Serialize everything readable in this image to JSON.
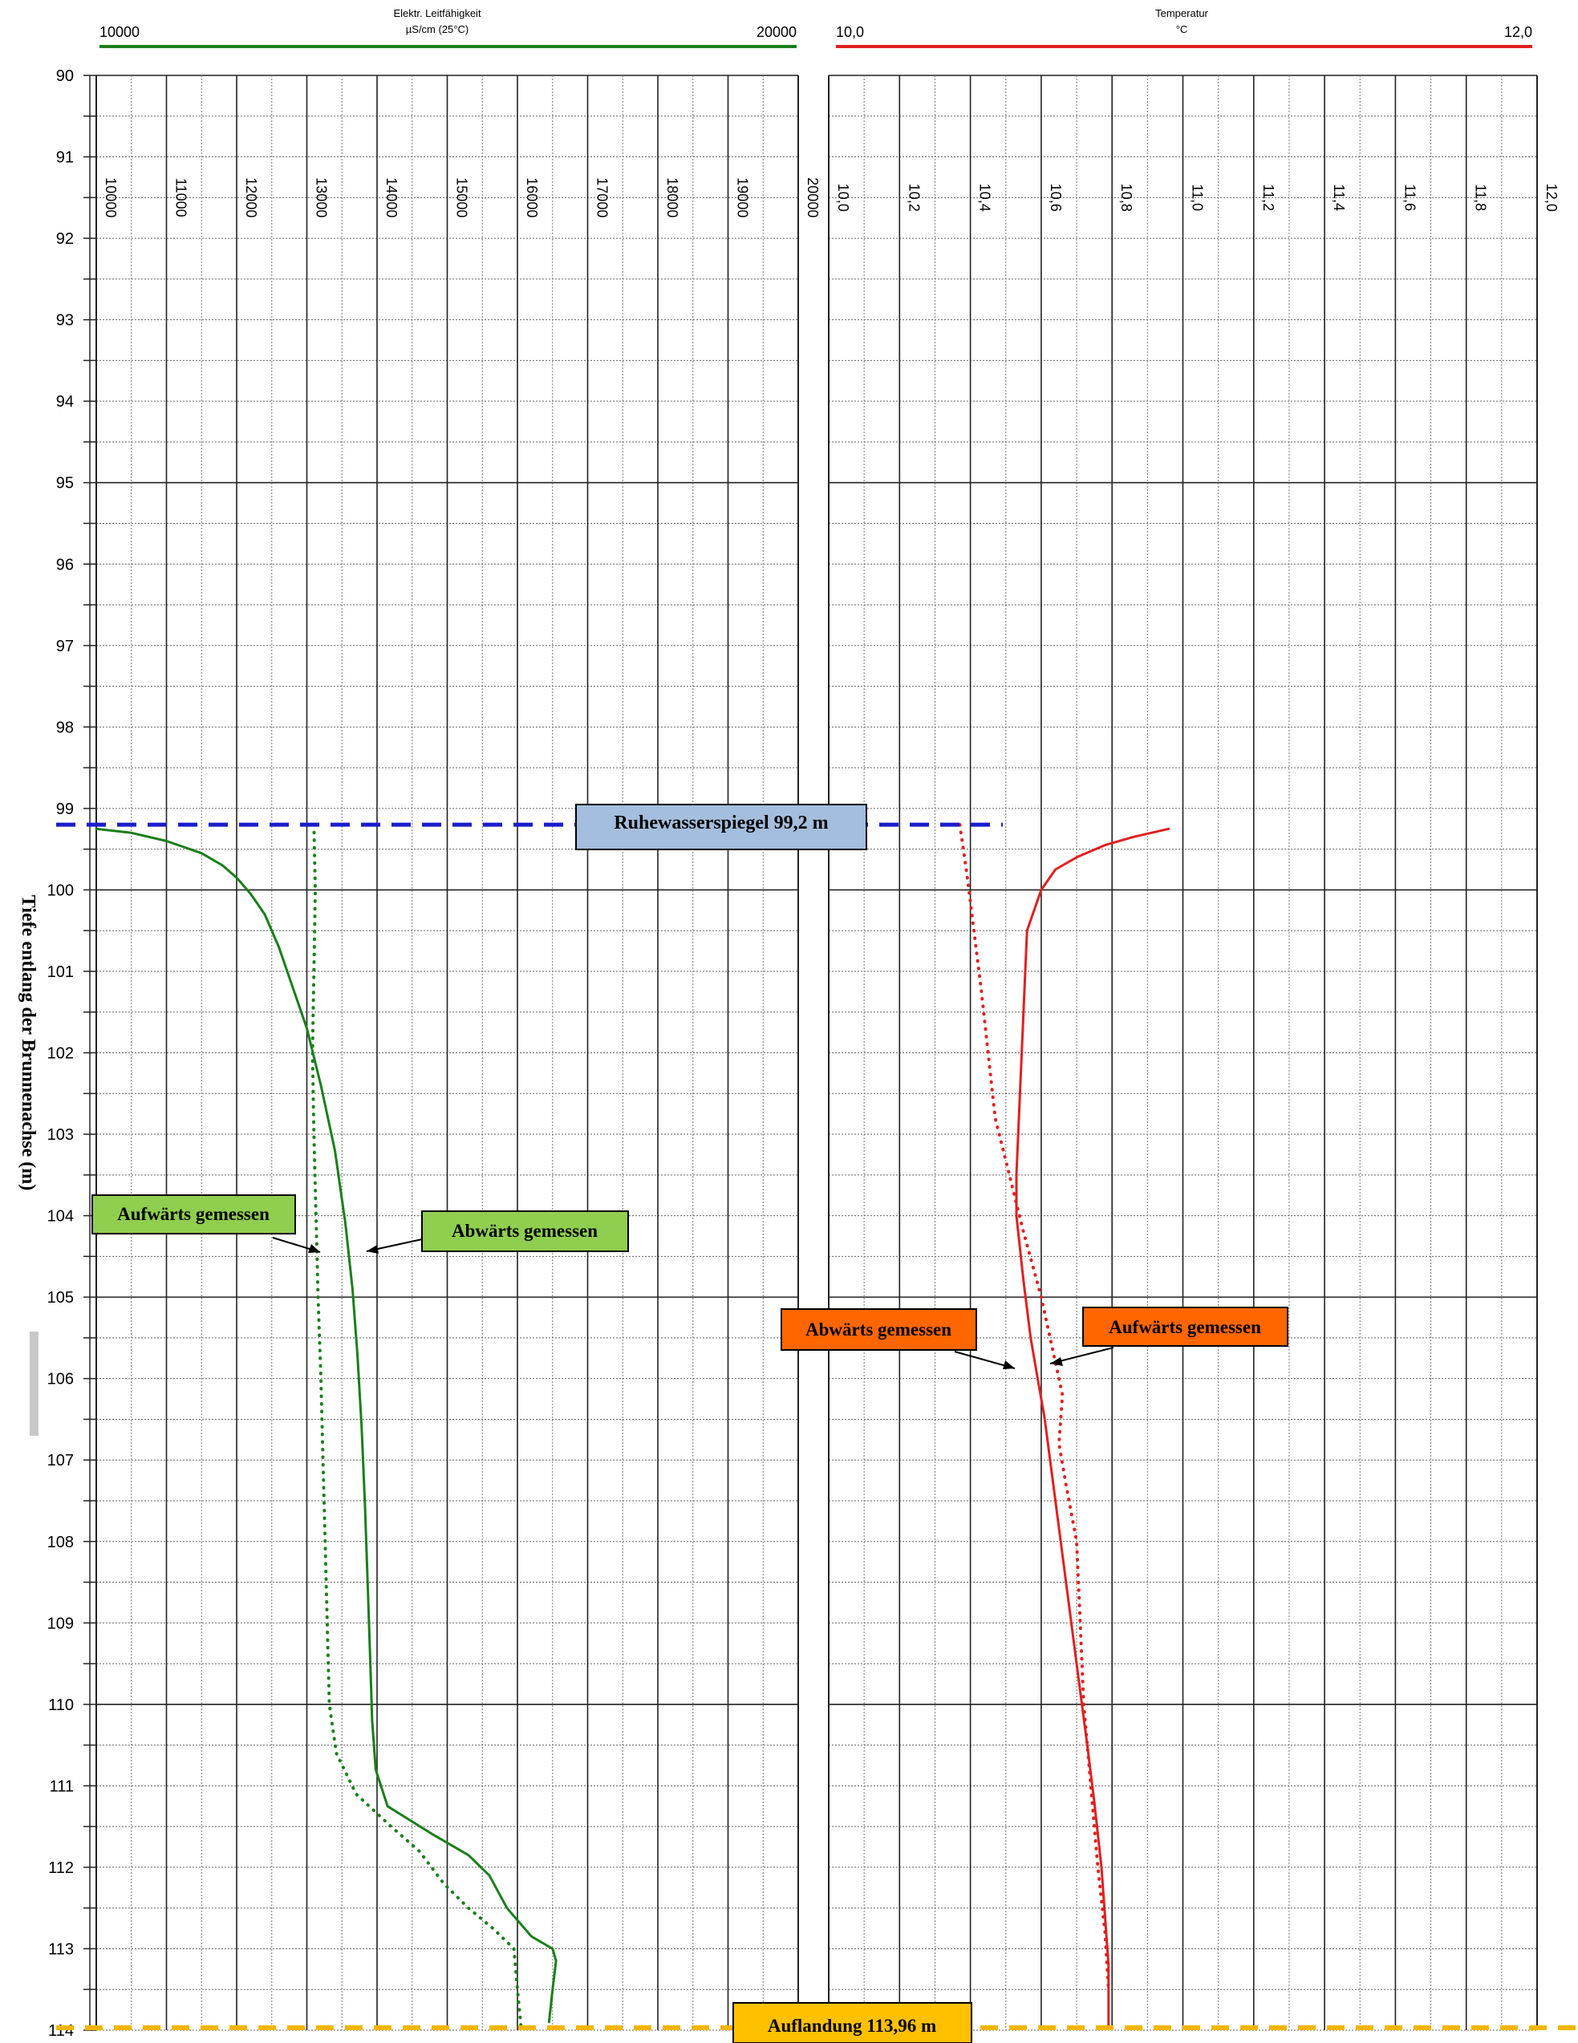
{
  "chart_data": {
    "type": "line",
    "y_axis": {
      "label": "Tiefe  entlang der Brunnenachse (m)",
      "range": [
        90,
        114
      ],
      "inverted": true,
      "ticks": [
        "90",
        "91",
        "92",
        "93",
        "94",
        "95",
        "96",
        "97",
        "98",
        "99",
        "100",
        "101",
        "102",
        "103",
        "104",
        "105",
        "106",
        "107",
        "108",
        "109",
        "110",
        "111",
        "112",
        "113",
        "114"
      ]
    },
    "panels": [
      {
        "name": "conductivity",
        "header_title": "Elektr. Leitfähigkeit",
        "header_unit": "µS/cm (25°C)",
        "header_min": "10000",
        "header_max": "20000",
        "color": "#1a7f1a",
        "xlim": [
          10000,
          20000
        ],
        "rotated_ticks": [
          "10000",
          "11000",
          "12000",
          "13000",
          "14000",
          "15000",
          "16000",
          "17000",
          "18000",
          "19000",
          "20000"
        ],
        "series": [
          {
            "style": "solid",
            "points": [
              [
                10000,
                99.25
              ],
              [
                10500,
                99.3
              ],
              [
                11000,
                99.4
              ],
              [
                11500,
                99.55
              ],
              [
                11800,
                99.7
              ],
              [
                12000,
                99.85
              ],
              [
                12200,
                100.05
              ],
              [
                12400,
                100.3
              ],
              [
                12600,
                100.7
              ],
              [
                12800,
                101.2
              ],
              [
                13000,
                101.7
              ],
              [
                13200,
                102.4
              ],
              [
                13400,
                103.2
              ],
              [
                13550,
                104.1
              ],
              [
                13650,
                104.9
              ],
              [
                13720,
                105.7
              ],
              [
                13780,
                106.6
              ],
              [
                13830,
                107.6
              ],
              [
                13870,
                108.6
              ],
              [
                13900,
                109.4
              ],
              [
                13930,
                110.2
              ],
              [
                13980,
                110.8
              ],
              [
                14150,
                111.25
              ],
              [
                14800,
                111.6
              ],
              [
                15300,
                111.85
              ],
              [
                15600,
                112.1
              ],
              [
                15850,
                112.5
              ],
              [
                16200,
                112.85
              ],
              [
                16500,
                113.0
              ],
              [
                16550,
                113.15
              ],
              [
                16500,
                113.5
              ],
              [
                16450,
                113.9
              ]
            ]
          },
          {
            "style": "dotted",
            "points": [
              [
                13100,
                99.2
              ],
              [
                13120,
                100.0
              ],
              [
                13100,
                101.0
              ],
              [
                13080,
                102.0
              ],
              [
                13100,
                103.0
              ],
              [
                13130,
                104.0
              ],
              [
                13160,
                105.0
              ],
              [
                13200,
                106.0
              ],
              [
                13230,
                107.0
              ],
              [
                13260,
                108.0
              ],
              [
                13290,
                109.0
              ],
              [
                13320,
                110.0
              ],
              [
                13420,
                110.6
              ],
              [
                13700,
                111.1
              ],
              [
                14200,
                111.5
              ],
              [
                14600,
                111.8
              ],
              [
                14950,
                112.2
              ],
              [
                15300,
                112.5
              ],
              [
                15650,
                112.75
              ],
              [
                15950,
                113.0
              ],
              [
                16000,
                113.5
              ],
              [
                16050,
                113.95
              ]
            ]
          }
        ]
      },
      {
        "name": "temperature",
        "header_title": "Temperatur",
        "header_unit": "°C",
        "header_min": "10,0",
        "header_max": "12,0",
        "color": "#e02020",
        "xlim": [
          10.0,
          12.0
        ],
        "rotated_ticks": [
          "10,0",
          "10,2",
          "10,4",
          "10,6",
          "10,8",
          "11,0",
          "11,2",
          "11,4",
          "11,6",
          "11,8",
          "12,0"
        ],
        "series": [
          {
            "style": "solid",
            "points": [
              [
                10.96,
                99.25
              ],
              [
                10.86,
                99.35
              ],
              [
                10.78,
                99.45
              ],
              [
                10.7,
                99.6
              ],
              [
                10.64,
                99.75
              ],
              [
                10.6,
                100.0
              ],
              [
                10.56,
                100.5
              ],
              [
                10.55,
                101.5
              ],
              [
                10.54,
                102.5
              ],
              [
                10.53,
                103.5
              ],
              [
                10.53,
                104.0
              ],
              [
                10.55,
                104.8
              ],
              [
                10.57,
                105.5
              ],
              [
                10.59,
                106.0
              ],
              [
                10.61,
                106.5
              ],
              [
                10.64,
                107.5
              ],
              [
                10.67,
                108.5
              ],
              [
                10.7,
                109.5
              ],
              [
                10.73,
                110.5
              ],
              [
                10.75,
                111.2
              ],
              [
                10.77,
                112.0
              ],
              [
                10.78,
                112.6
              ],
              [
                10.79,
                113.2
              ],
              [
                10.79,
                113.95
              ]
            ]
          },
          {
            "style": "dotted",
            "points": [
              [
                10.37,
                99.2
              ],
              [
                10.39,
                99.8
              ],
              [
                10.41,
                100.5
              ],
              [
                10.43,
                101.2
              ],
              [
                10.45,
                102.0
              ],
              [
                10.47,
                102.8
              ],
              [
                10.51,
                103.5
              ],
              [
                10.55,
                104.2
              ],
              [
                10.6,
                105.0
              ],
              [
                10.64,
                105.8
              ],
              [
                10.66,
                106.2
              ],
              [
                10.65,
                106.8
              ],
              [
                10.67,
                107.3
              ],
              [
                10.7,
                108.0
              ],
              [
                10.71,
                109.0
              ],
              [
                10.72,
                110.0
              ],
              [
                10.74,
                111.0
              ],
              [
                10.76,
                112.0
              ],
              [
                10.78,
                112.8
              ],
              [
                10.79,
                113.5
              ]
            ]
          }
        ]
      }
    ],
    "reference_lines": [
      {
        "name": "static-water-level",
        "depth": 99.2,
        "color": "#1c1ccc",
        "label": "Ruhewasserspiegel 99,2 m",
        "box_color": "#a4bedd"
      },
      {
        "name": "sedimentation-level",
        "depth": 113.96,
        "color": "#f4b400",
        "label": "Auflandung 113,96 m",
        "box_color": "#ffc000"
      }
    ],
    "annotations": {
      "cond_up": "Aufwärts gemessen",
      "cond_down": "Abwärts gemessen",
      "temp_down": "Abwärts gemessen",
      "temp_up": "Aufwärts gemessen",
      "green_box_color": "#8fce4f",
      "orange_box_color": "#ff6600"
    }
  }
}
